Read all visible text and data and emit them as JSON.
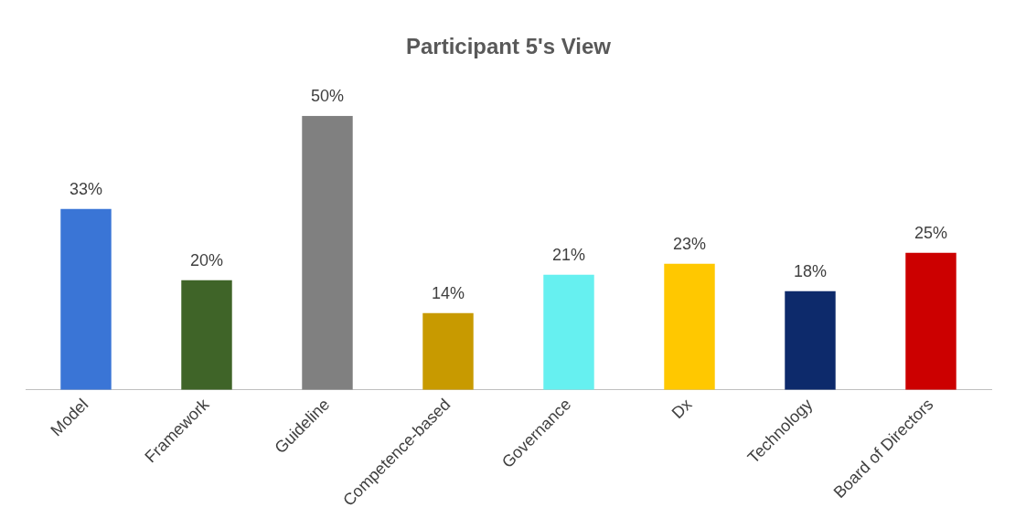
{
  "chart_data": {
    "type": "bar",
    "title": "Participant 5's View",
    "categories": [
      "Model",
      "Framework",
      "Guideline",
      "Competence-based",
      "Governance",
      "Dx",
      "Technology",
      "Board of Directors"
    ],
    "values": [
      33,
      20,
      50,
      14,
      21,
      23,
      18,
      25
    ],
    "colors": [
      "#3a75d6",
      "#3f6428",
      "#808080",
      "#c89a00",
      "#66f0f0",
      "#ffc800",
      "#0d2a6b",
      "#cc0000"
    ],
    "value_labels": [
      "33%",
      "20%",
      "50%",
      "14%",
      "21%",
      "23%",
      "18%",
      "25%"
    ],
    "grid": false,
    "legend": false
  }
}
